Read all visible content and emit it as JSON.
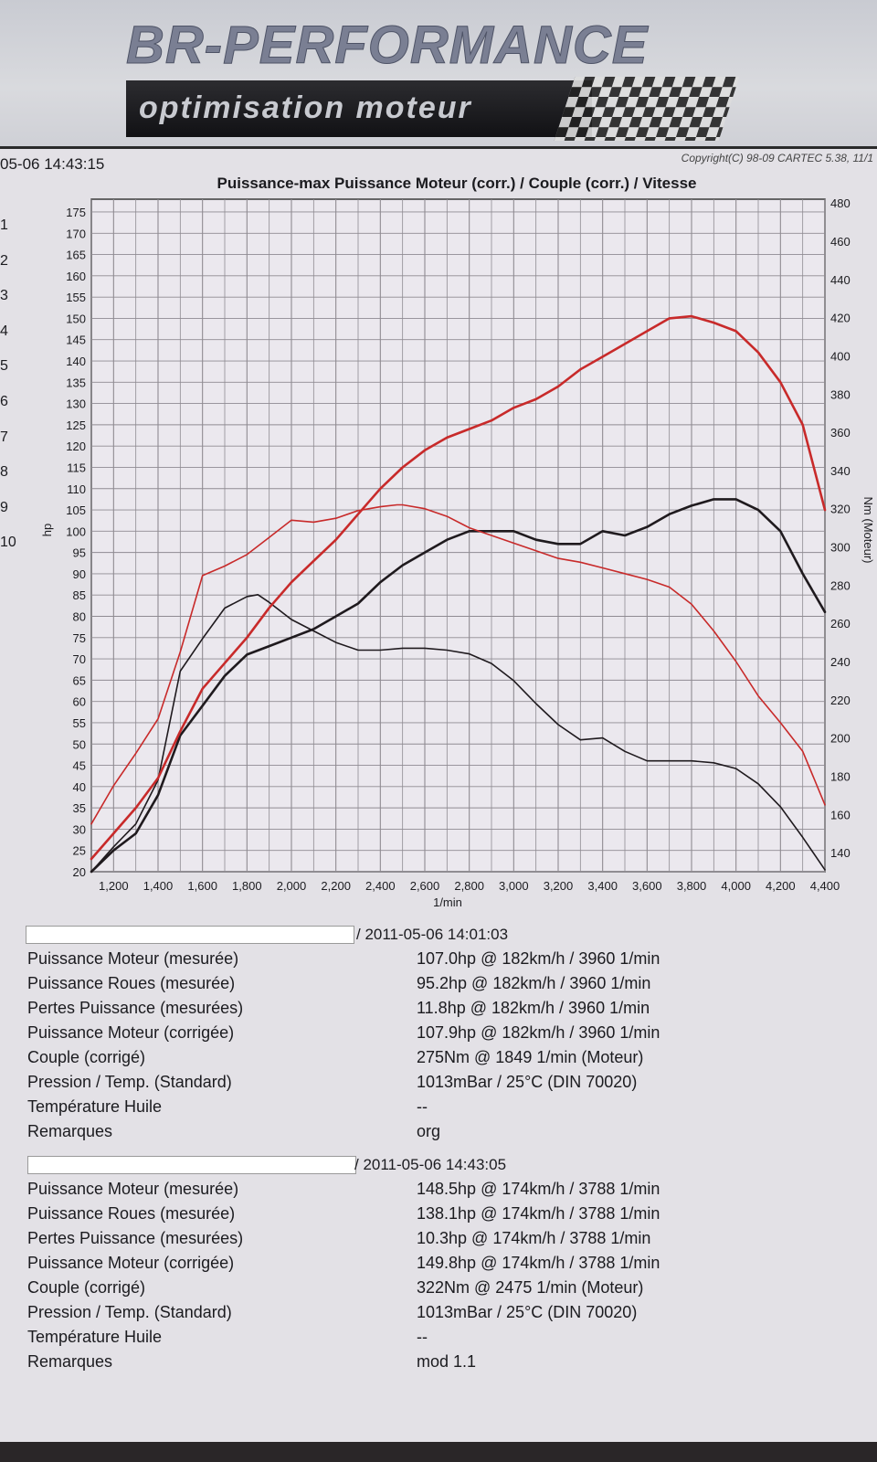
{
  "banner": {
    "brand": "BR-PERFORMANCE",
    "tagline": "optimisation moteur"
  },
  "header": {
    "timestamp": "05-06 14:43:15",
    "copyright": "Copyright(C) 98-09 CARTEC 5.38, 11/1",
    "title": "Puissance-max Puissance Moteur (corr.) / Couple (corr.) / Vitesse"
  },
  "run_numbers": [
    "1",
    "2",
    "3",
    "4",
    "5",
    "6",
    "7",
    "8",
    "9",
    "10"
  ],
  "colors": {
    "run_org": "#1f1a1e",
    "run_mod": "#c82a2a",
    "grid": "#8f8b92",
    "paper": "#e3e1e6"
  },
  "chart_data": {
    "type": "line",
    "title": "Puissance-max Puissance Moteur (corr.) / Couple (corr.) / Vitesse",
    "xlabel": "1/min",
    "ylabel_left": "hp",
    "ylabel_right": "Nm (Moteur)",
    "xlim": [
      1100,
      4400
    ],
    "ylim_left": [
      20,
      178
    ],
    "ylim_right": [
      130,
      482
    ],
    "x_ticks": [
      1200,
      1400,
      1600,
      1800,
      2000,
      2200,
      2400,
      2600,
      2800,
      3000,
      3200,
      3400,
      3600,
      3800,
      4000,
      4200,
      4400
    ],
    "x_tick_labels": [
      "1,200",
      "1,400",
      "1,600",
      "1,800",
      "2,000",
      "2,200",
      "2,400",
      "2,600",
      "2,800",
      "3,000",
      "3,200",
      "3,400",
      "3,600",
      "3,800",
      "4,000",
      "4,200",
      "4,400"
    ],
    "y_left_ticks": [
      20,
      25,
      30,
      35,
      40,
      45,
      50,
      55,
      60,
      65,
      70,
      75,
      80,
      85,
      90,
      95,
      100,
      105,
      110,
      115,
      120,
      125,
      130,
      135,
      140,
      145,
      150,
      155,
      160,
      165,
      170,
      175
    ],
    "y_right_ticks": [
      140,
      160,
      180,
      200,
      220,
      240,
      260,
      280,
      300,
      320,
      340,
      360,
      380,
      400,
      420,
      440,
      460,
      480
    ],
    "grid": true,
    "series": [
      {
        "name": "org",
        "kind": "power",
        "axis": "left",
        "color": "#1f1a1e",
        "x": [
          1100,
          1200,
          1300,
          1400,
          1500,
          1600,
          1700,
          1800,
          1900,
          2000,
          2100,
          2200,
          2300,
          2400,
          2500,
          2600,
          2700,
          2800,
          2900,
          3000,
          3100,
          3200,
          3300,
          3400,
          3500,
          3600,
          3700,
          3800,
          3900,
          4000,
          4100,
          4200,
          4300,
          4400
        ],
        "values": [
          20,
          25,
          29,
          38,
          52,
          59,
          66,
          71,
          73,
          75,
          77,
          80,
          83,
          88,
          92,
          95,
          98,
          100,
          100,
          100,
          98,
          97,
          97,
          100,
          99,
          101,
          104,
          106,
          107.5,
          107.5,
          105,
          100,
          90,
          81
        ]
      },
      {
        "name": "org",
        "kind": "torque",
        "axis": "right",
        "color": "#1f1a1e",
        "x": [
          1100,
          1200,
          1300,
          1400,
          1500,
          1600,
          1700,
          1800,
          1849,
          1900,
          2000,
          2100,
          2200,
          2300,
          2400,
          2500,
          2600,
          2700,
          2800,
          2900,
          3000,
          3100,
          3200,
          3300,
          3400,
          3500,
          3600,
          3700,
          3800,
          3900,
          4000,
          4100,
          4200,
          4300,
          4400
        ],
        "values": [
          130,
          143,
          155,
          178,
          235,
          252,
          268,
          274,
          275,
          271,
          262,
          256,
          250,
          246,
          246,
          247,
          247,
          246,
          244,
          239,
          230,
          218,
          207,
          199,
          200,
          193,
          188,
          188,
          188,
          187,
          184,
          176,
          164,
          148,
          131
        ]
      },
      {
        "name": "mod 1.1",
        "kind": "power",
        "axis": "left",
        "color": "#c82a2a",
        "x": [
          1100,
          1200,
          1300,
          1400,
          1500,
          1600,
          1700,
          1800,
          1900,
          2000,
          2100,
          2200,
          2300,
          2400,
          2500,
          2600,
          2700,
          2800,
          2900,
          3000,
          3100,
          3200,
          3300,
          3400,
          3500,
          3600,
          3700,
          3800,
          3900,
          4000,
          4100,
          4200,
          4300,
          4400
        ],
        "values": [
          23,
          29,
          35,
          42,
          53,
          63,
          69,
          75,
          82,
          88,
          93,
          98,
          104,
          110,
          115,
          119,
          122,
          124,
          126,
          129,
          131,
          134,
          138,
          141,
          144,
          147,
          150,
          150.5,
          149,
          147,
          142,
          135,
          125,
          105
        ]
      },
      {
        "name": "mod 1.1",
        "kind": "torque",
        "axis": "right",
        "color": "#c82a2a",
        "x": [
          1100,
          1200,
          1300,
          1400,
          1500,
          1600,
          1700,
          1800,
          1900,
          2000,
          2100,
          2200,
          2300,
          2400,
          2475,
          2500,
          2600,
          2700,
          2800,
          2900,
          3000,
          3100,
          3200,
          3300,
          3400,
          3500,
          3600,
          3700,
          3800,
          3900,
          4000,
          4100,
          4200,
          4300,
          4400
        ],
        "values": [
          155,
          175,
          192,
          210,
          245,
          285,
          290,
          296,
          305,
          314,
          313,
          315,
          319,
          321,
          322,
          322,
          320,
          316,
          310,
          306,
          302,
          298,
          294,
          292,
          289,
          286,
          283,
          279,
          270,
          256,
          240,
          222,
          208,
          193,
          165
        ]
      }
    ]
  },
  "runs": [
    {
      "timestamp": "/ 2011-05-06 14:01:03",
      "rows": [
        {
          "label": "Puissance Moteur (mesurée)",
          "value": "107.0hp @ 182km/h / 3960 1/min"
        },
        {
          "label": "Puissance Roues (mesurée)",
          "value": "95.2hp @ 182km/h / 3960 1/min"
        },
        {
          "label": "Pertes Puissance (mesurées)",
          "value": "11.8hp @ 182km/h / 3960 1/min"
        },
        {
          "label": "Puissance Moteur (corrigée)",
          "value": "107.9hp @ 182km/h / 3960 1/min"
        },
        {
          "label": "Couple (corrigé)",
          "value": "275Nm @ 1849 1/min (Moteur)"
        },
        {
          "label": "Pression / Temp. (Standard)",
          "value": "1013mBar / 25°C   (DIN 70020)"
        },
        {
          "label": "Température Huile",
          "value": "--"
        },
        {
          "label": "Remarques",
          "value": "org"
        }
      ]
    },
    {
      "timestamp": "/ 2011-05-06 14:43:05",
      "rows": [
        {
          "label": "Puissance Moteur (mesurée)",
          "value": "148.5hp @ 174km/h / 3788 1/min"
        },
        {
          "label": "Puissance Roues (mesurée)",
          "value": "138.1hp @ 174km/h / 3788 1/min"
        },
        {
          "label": "Pertes Puissance (mesurées)",
          "value": "10.3hp @ 174km/h / 3788 1/min"
        },
        {
          "label": "Puissance Moteur (corrigée)",
          "value": "149.8hp @ 174km/h / 3788 1/min"
        },
        {
          "label": "Couple (corrigé)",
          "value": "322Nm @ 2475 1/min (Moteur)"
        },
        {
          "label": "Pression / Temp. (Standard)",
          "value": "1013mBar / 25°C   (DIN 70020)"
        },
        {
          "label": "Température Huile",
          "value": "--"
        },
        {
          "label": "Remarques",
          "value": "mod 1.1"
        }
      ]
    }
  ]
}
